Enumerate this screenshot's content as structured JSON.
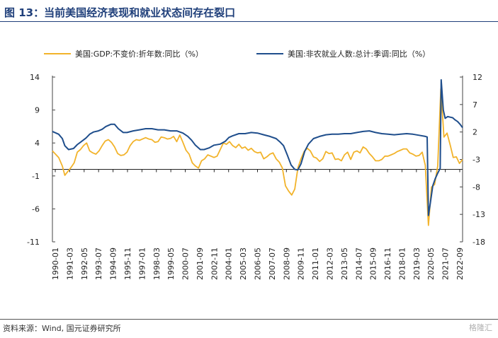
{
  "page": {
    "title": "图 13：当前美国经济表现和就业状态间存在裂口",
    "source": "资料来源：Wind, 国元证券研究所",
    "watermark": "格隆汇"
  },
  "chart_data": {
    "type": "line",
    "title": "图 13：当前美国经济表现和就业状态间存在裂口",
    "legend_position": "top",
    "grid": false,
    "x_tick_labels": [
      "1990-01",
      "1991-03",
      "1992-05",
      "1993-07",
      "1994-09",
      "1995-11",
      "1997-01",
      "1998-03",
      "1999-05",
      "2000-07",
      "2001-09",
      "2002-11",
      "2004-01",
      "2005-03",
      "2006-05",
      "2007-07",
      "2008-09",
      "2009-11",
      "2011-01",
      "2012-03",
      "2013-05",
      "2014-07",
      "2015-09",
      "2016-11",
      "2018-01",
      "2019-03",
      "2020-05",
      "2021-07",
      "2022-09"
    ],
    "x_range": [
      1990.0,
      2023.0
    ],
    "y_left": {
      "range": [
        -11,
        14
      ],
      "ticks": [
        -11,
        -6,
        -1,
        4,
        9,
        14
      ]
    },
    "y_right": {
      "range": [
        -18,
        12
      ],
      "ticks": [
        -18,
        -13,
        -8,
        -3,
        2,
        7,
        12
      ]
    },
    "series": [
      {
        "name": "美国:GDP:不变价:折年数:同比（%）",
        "axis": "left",
        "color": "#f2b32a",
        "points": [
          [
            1990.0,
            2.8
          ],
          [
            1990.5,
            1.8
          ],
          [
            1990.8,
            0.5
          ],
          [
            1991.0,
            -0.9
          ],
          [
            1991.25,
            -0.3
          ],
          [
            1991.5,
            0.3
          ],
          [
            1991.75,
            1.0
          ],
          [
            1992.0,
            2.6
          ],
          [
            1992.25,
            3.0
          ],
          [
            1992.5,
            3.6
          ],
          [
            1992.75,
            4.0
          ],
          [
            1993.0,
            2.8
          ],
          [
            1993.25,
            2.5
          ],
          [
            1993.5,
            2.3
          ],
          [
            1993.75,
            2.8
          ],
          [
            1994.0,
            3.6
          ],
          [
            1994.25,
            4.3
          ],
          [
            1994.5,
            4.5
          ],
          [
            1994.75,
            4.1
          ],
          [
            1995.0,
            3.4
          ],
          [
            1995.25,
            2.4
          ],
          [
            1995.5,
            2.1
          ],
          [
            1995.75,
            2.2
          ],
          [
            1996.0,
            2.6
          ],
          [
            1996.25,
            3.6
          ],
          [
            1996.5,
            4.2
          ],
          [
            1996.75,
            4.5
          ],
          [
            1997.0,
            4.4
          ],
          [
            1997.25,
            4.6
          ],
          [
            1997.5,
            4.8
          ],
          [
            1997.75,
            4.6
          ],
          [
            1998.0,
            4.5
          ],
          [
            1998.25,
            4.1
          ],
          [
            1998.5,
            4.2
          ],
          [
            1998.75,
            4.9
          ],
          [
            1999.0,
            4.8
          ],
          [
            1999.25,
            4.6
          ],
          [
            1999.5,
            4.7
          ],
          [
            1999.75,
            5.0
          ],
          [
            2000.0,
            4.2
          ],
          [
            2000.25,
            5.2
          ],
          [
            2000.5,
            4.1
          ],
          [
            2000.75,
            2.9
          ],
          [
            2001.0,
            2.3
          ],
          [
            2001.25,
            1.0
          ],
          [
            2001.5,
            0.5
          ],
          [
            2001.75,
            0.2
          ],
          [
            2002.0,
            1.3
          ],
          [
            2002.25,
            1.6
          ],
          [
            2002.5,
            2.2
          ],
          [
            2002.75,
            2.0
          ],
          [
            2003.0,
            1.8
          ],
          [
            2003.25,
            2.0
          ],
          [
            2003.5,
            3.0
          ],
          [
            2003.75,
            4.0
          ],
          [
            2004.0,
            3.8
          ],
          [
            2004.25,
            4.2
          ],
          [
            2004.5,
            3.6
          ],
          [
            2004.75,
            3.3
          ],
          [
            2005.0,
            3.8
          ],
          [
            2005.25,
            3.2
          ],
          [
            2005.5,
            3.4
          ],
          [
            2005.75,
            2.9
          ],
          [
            2006.0,
            3.2
          ],
          [
            2006.25,
            2.7
          ],
          [
            2006.5,
            2.5
          ],
          [
            2006.75,
            2.6
          ],
          [
            2007.0,
            1.6
          ],
          [
            2007.25,
            1.9
          ],
          [
            2007.5,
            2.3
          ],
          [
            2007.75,
            2.5
          ],
          [
            2008.0,
            1.6
          ],
          [
            2008.25,
            1.1
          ],
          [
            2008.5,
            0.2
          ],
          [
            2008.75,
            -2.5
          ],
          [
            2009.0,
            -3.3
          ],
          [
            2009.25,
            -3.9
          ],
          [
            2009.5,
            -3.0
          ],
          [
            2009.75,
            0.2
          ],
          [
            2010.0,
            1.6
          ],
          [
            2010.25,
            2.7
          ],
          [
            2010.5,
            3.2
          ],
          [
            2010.75,
            2.8
          ],
          [
            2011.0,
            1.9
          ],
          [
            2011.25,
            1.7
          ],
          [
            2011.5,
            1.2
          ],
          [
            2011.75,
            1.6
          ],
          [
            2012.0,
            2.7
          ],
          [
            2012.25,
            2.4
          ],
          [
            2012.5,
            2.5
          ],
          [
            2012.75,
            1.5
          ],
          [
            2013.0,
            1.6
          ],
          [
            2013.25,
            1.3
          ],
          [
            2013.5,
            2.2
          ],
          [
            2013.75,
            2.6
          ],
          [
            2014.0,
            1.5
          ],
          [
            2014.25,
            2.6
          ],
          [
            2014.5,
            2.8
          ],
          [
            2014.75,
            2.5
          ],
          [
            2015.0,
            3.4
          ],
          [
            2015.25,
            3.1
          ],
          [
            2015.5,
            2.4
          ],
          [
            2015.75,
            1.9
          ],
          [
            2016.0,
            1.3
          ],
          [
            2016.25,
            1.3
          ],
          [
            2016.5,
            1.5
          ],
          [
            2016.75,
            2.0
          ],
          [
            2017.0,
            2.0
          ],
          [
            2017.25,
            2.2
          ],
          [
            2017.5,
            2.4
          ],
          [
            2017.75,
            2.7
          ],
          [
            2018.0,
            2.9
          ],
          [
            2018.25,
            3.1
          ],
          [
            2018.5,
            3.1
          ],
          [
            2018.75,
            2.5
          ],
          [
            2019.0,
            2.3
          ],
          [
            2019.25,
            2.0
          ],
          [
            2019.5,
            2.1
          ],
          [
            2019.75,
            2.6
          ],
          [
            2020.0,
            0.6
          ],
          [
            2020.25,
            -8.5
          ],
          [
            2020.5,
            -2.7
          ],
          [
            2020.75,
            -2.3
          ],
          [
            2021.0,
            0.5
          ],
          [
            2021.25,
            12.2
          ],
          [
            2021.5,
            4.9
          ],
          [
            2021.75,
            5.5
          ],
          [
            2022.0,
            3.7
          ],
          [
            2022.25,
            1.8
          ],
          [
            2022.5,
            1.9
          ],
          [
            2022.75,
            0.9
          ],
          [
            2023.0,
            1.5
          ]
        ]
      },
      {
        "name": "美国:非农就业人数:总计:季调:同比（%）",
        "axis": "right",
        "color": "#1f4e8c",
        "points": [
          [
            1990.0,
            2.1
          ],
          [
            1990.5,
            1.6
          ],
          [
            1990.8,
            0.8
          ],
          [
            1991.0,
            -0.5
          ],
          [
            1991.3,
            -1.2
          ],
          [
            1991.7,
            -1.0
          ],
          [
            1992.0,
            -0.3
          ],
          [
            1992.3,
            0.2
          ],
          [
            1992.7,
            0.9
          ],
          [
            1993.0,
            1.6
          ],
          [
            1993.3,
            2.0
          ],
          [
            1993.7,
            2.2
          ],
          [
            1994.0,
            2.5
          ],
          [
            1994.3,
            3.0
          ],
          [
            1994.7,
            3.4
          ],
          [
            1995.0,
            3.4
          ],
          [
            1995.3,
            2.6
          ],
          [
            1995.7,
            1.9
          ],
          [
            1996.0,
            1.9
          ],
          [
            1996.5,
            2.2
          ],
          [
            1997.0,
            2.4
          ],
          [
            1997.5,
            2.6
          ],
          [
            1998.0,
            2.6
          ],
          [
            1998.5,
            2.4
          ],
          [
            1999.0,
            2.4
          ],
          [
            1999.5,
            2.2
          ],
          [
            2000.0,
            2.2
          ],
          [
            2000.5,
            1.8
          ],
          [
            2000.9,
            1.2
          ],
          [
            2001.2,
            0.5
          ],
          [
            2001.5,
            -0.4
          ],
          [
            2001.9,
            -1.2
          ],
          [
            2002.2,
            -1.2
          ],
          [
            2002.6,
            -0.9
          ],
          [
            2003.0,
            -0.4
          ],
          [
            2003.5,
            -0.2
          ],
          [
            2003.9,
            0.3
          ],
          [
            2004.2,
            1.0
          ],
          [
            2004.5,
            1.3
          ],
          [
            2005.0,
            1.7
          ],
          [
            2005.5,
            1.7
          ],
          [
            2006.0,
            1.9
          ],
          [
            2006.5,
            1.8
          ],
          [
            2007.0,
            1.5
          ],
          [
            2007.5,
            1.2
          ],
          [
            2008.0,
            0.8
          ],
          [
            2008.3,
            0.2
          ],
          [
            2008.6,
            -0.5
          ],
          [
            2008.9,
            -2.2
          ],
          [
            2009.2,
            -4.0
          ],
          [
            2009.5,
            -4.8
          ],
          [
            2009.75,
            -4.9
          ],
          [
            2010.0,
            -3.8
          ],
          [
            2010.3,
            -1.5
          ],
          [
            2010.6,
            -0.2
          ],
          [
            2011.0,
            0.8
          ],
          [
            2011.5,
            1.2
          ],
          [
            2012.0,
            1.5
          ],
          [
            2012.5,
            1.6
          ],
          [
            2013.0,
            1.6
          ],
          [
            2013.5,
            1.7
          ],
          [
            2014.0,
            1.7
          ],
          [
            2014.5,
            1.9
          ],
          [
            2015.0,
            2.1
          ],
          [
            2015.5,
            2.2
          ],
          [
            2016.0,
            1.9
          ],
          [
            2016.5,
            1.7
          ],
          [
            2017.0,
            1.6
          ],
          [
            2017.5,
            1.5
          ],
          [
            2018.0,
            1.6
          ],
          [
            2018.5,
            1.7
          ],
          [
            2019.0,
            1.6
          ],
          [
            2019.5,
            1.4
          ],
          [
            2020.0,
            1.2
          ],
          [
            2020.15,
            1.1
          ],
          [
            2020.25,
            -13.2
          ],
          [
            2020.4,
            -11.0
          ],
          [
            2020.6,
            -7.8
          ],
          [
            2020.8,
            -6.5
          ],
          [
            2021.0,
            -5.5
          ],
          [
            2021.2,
            -4.6
          ],
          [
            2021.28,
            11.5
          ],
          [
            2021.45,
            6.0
          ],
          [
            2021.6,
            4.5
          ],
          [
            2021.8,
            4.8
          ],
          [
            2022.0,
            4.7
          ],
          [
            2022.2,
            4.6
          ],
          [
            2022.4,
            4.2
          ],
          [
            2022.6,
            3.9
          ],
          [
            2022.8,
            3.4
          ],
          [
            2023.0,
            2.8
          ]
        ]
      }
    ]
  }
}
